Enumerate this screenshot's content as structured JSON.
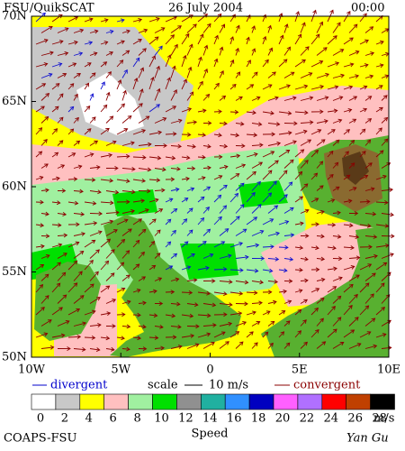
{
  "header": {
    "product": "FSU/QuikSCAT",
    "date": "26 July 2004",
    "time": "00:00"
  },
  "lat_labels": [
    "70N",
    "65N",
    "60N",
    "55N",
    "50N"
  ],
  "lon_labels": [
    "10W",
    "5W",
    "0",
    "5E",
    "10E"
  ],
  "legend": {
    "divergent": "divergent",
    "scale": "scale",
    "scale_value": "10 m/s",
    "convergent": "convergent"
  },
  "speed_scale": {
    "ticks": [
      0,
      2,
      4,
      6,
      8,
      10,
      12,
      14,
      16,
      18,
      20,
      22,
      24,
      26,
      28
    ],
    "unit": "m/s",
    "title": "Speed",
    "colors": [
      "#ffffff",
      "#c8c8c8",
      "#ffff00",
      "#ffc0c0",
      "#a0f0a0",
      "#00e000",
      "#909090",
      "#20b0a0",
      "#3090ff",
      "#0000c0",
      "#ff60ff",
      "#b070ff",
      "#ff0000",
      "#c04000",
      "#000000"
    ]
  },
  "footer": {
    "org": "COAPS-FSU",
    "author": "Yan Gu"
  }
}
